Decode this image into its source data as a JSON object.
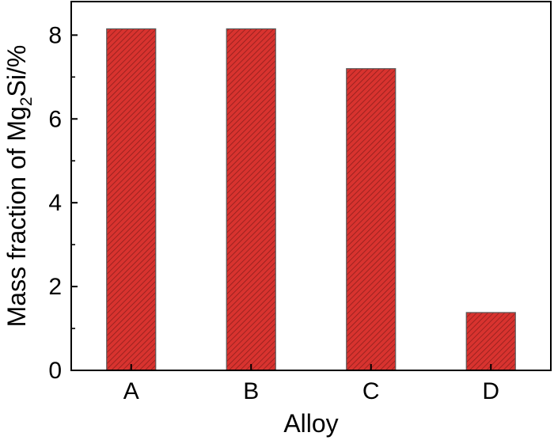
{
  "chart_data": {
    "type": "bar",
    "title": "",
    "categories": [
      "A",
      "B",
      "C",
      "D"
    ],
    "values": [
      8.15,
      8.15,
      7.2,
      1.38
    ],
    "xlabel": "Alloy",
    "ylabel": {
      "prefix": "Mass fraction of Mg",
      "subscript": "2",
      "suffix": "Si/%"
    },
    "ylim": [
      0,
      8.8
    ],
    "yticks": [
      0,
      2,
      4,
      6,
      8
    ],
    "grid": false,
    "legend": "none",
    "bar_color": "#cc2a2a",
    "bar_pattern": "diagonal hatch"
  }
}
